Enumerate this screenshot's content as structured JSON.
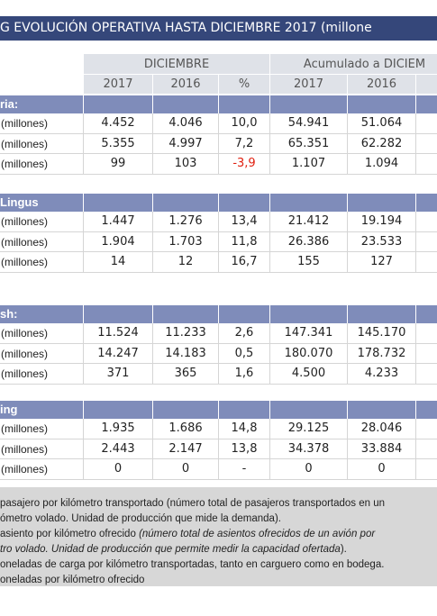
{
  "title": "G EVOLUCIÓN OPERATIVA HASTA DICIEMBRE 2017 (millone",
  "table": {
    "groups": [
      "DICIEMBRE",
      "Acumulado a DICIEM"
    ],
    "columns": [
      "2017",
      "2016",
      "%",
      "2017",
      "2016"
    ],
    "sections": [
      {
        "name": "ria:",
        "rows": [
          {
            "label": "(millones)",
            "values": [
              "4.452",
              "4.046",
              "10,0",
              "54.941",
              "51.064"
            ]
          },
          {
            "label": "(millones)",
            "values": [
              "5.355",
              "4.997",
              "7,2",
              "65.351",
              "62.282"
            ]
          },
          {
            "label": "(millones)",
            "values": [
              "99",
              "103",
              "-3,9",
              "1.107",
              "1.094"
            ]
          }
        ]
      },
      {
        "name": "Lingus",
        "rows": [
          {
            "label": "(millones)",
            "values": [
              "1.447",
              "1.276",
              "13,4",
              "21.412",
              "19.194"
            ]
          },
          {
            "label": "(millones)",
            "values": [
              "1.904",
              "1.703",
              "11,8",
              "26.386",
              "23.533"
            ]
          },
          {
            "label": "(millones)",
            "values": [
              "14",
              "12",
              "16,7",
              "155",
              "127"
            ]
          }
        ]
      },
      {
        "name": "sh:",
        "rows": [
          {
            "label": "(millones)",
            "values": [
              "11.524",
              "11.233",
              "2,6",
              "147.341",
              "145.170"
            ]
          },
          {
            "label": "(millones)",
            "values": [
              "14.247",
              "14.183",
              "0,5",
              "180.070",
              "178.732"
            ]
          },
          {
            "label": "(millones)",
            "values": [
              "371",
              "365",
              "1,6",
              "4.500",
              "4.233"
            ]
          }
        ]
      },
      {
        "name": "ing",
        "rows": [
          {
            "label": "(millones)",
            "values": [
              "1.935",
              "1.686",
              "14,8",
              "29.125",
              "28.046"
            ]
          },
          {
            "label": "(millones)",
            "values": [
              "2.443",
              "2.147",
              "13,8",
              "34.378",
              "33.884"
            ]
          },
          {
            "label": "(millones)",
            "values": [
              "0",
              "0",
              "-",
              "0",
              "0"
            ]
          }
        ]
      }
    ]
  },
  "notes": [
    [
      "pasajero por kilómetro transportado (número total de pasajeros transportados en un"
    ],
    [
      "ómetro volado. Unidad de producción que mide la demanda)."
    ],
    [
      "asiento por kilómetro ofrecido ",
      "(número total de asientos ofrecidos de un avión por"
    ],
    [
      "tro volado. Unidad de producción que permite medir la capacidad ofertada",
      ")."
    ],
    [
      "oneladas de carga por kilómetro transportadas, tanto en carguero como en bodega."
    ],
    [
      "oneladas por kilómetro ofrecido"
    ]
  ]
}
